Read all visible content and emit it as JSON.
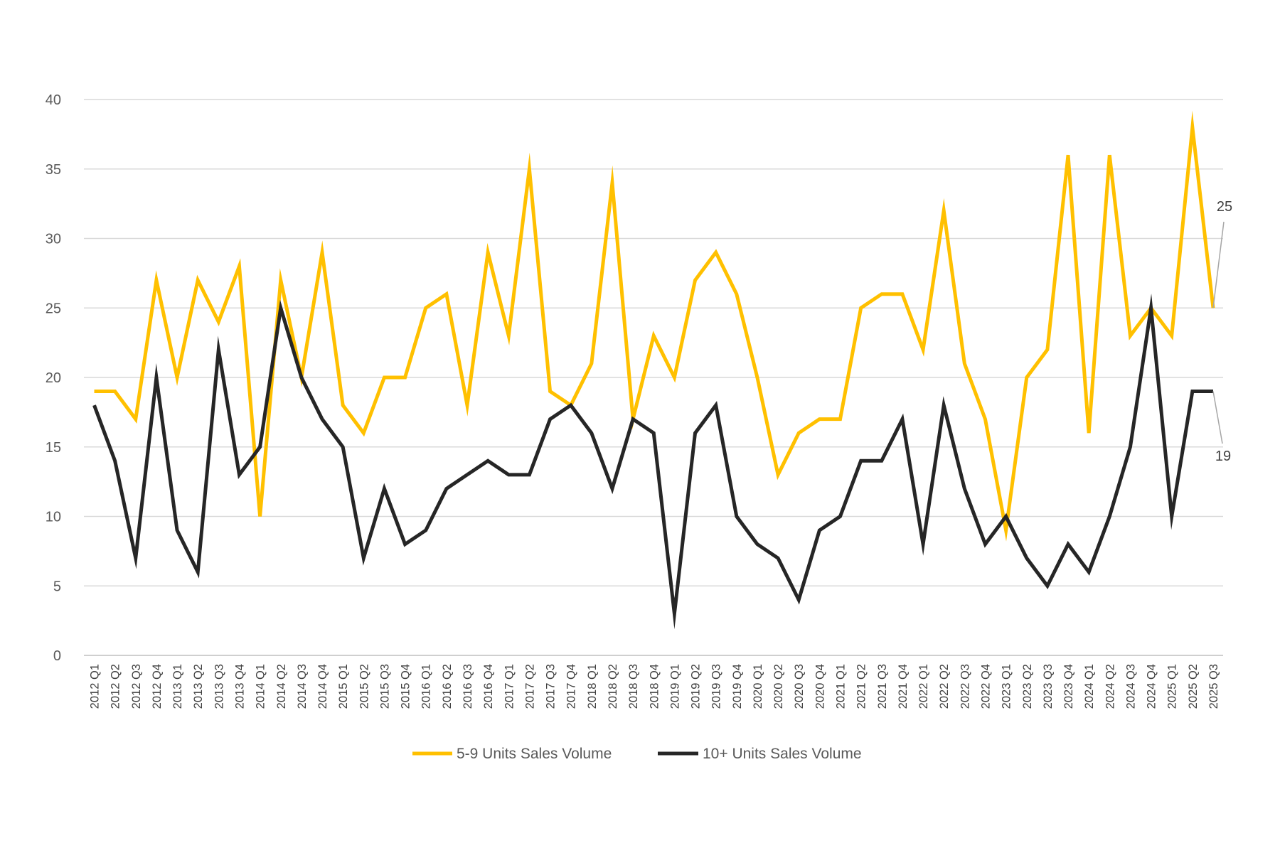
{
  "chart_data": {
    "type": "line",
    "title": "",
    "xlabel": "",
    "ylabel": "",
    "ylim": [
      0,
      40
    ],
    "yticks": [
      0,
      5,
      10,
      15,
      20,
      25,
      30,
      35,
      40
    ],
    "grid": "horizontal",
    "legend_position": "bottom",
    "categories": [
      "2012 Q1",
      "2012 Q2",
      "2012 Q3",
      "2012 Q4",
      "2013 Q1",
      "2013 Q2",
      "2013 Q3",
      "2013 Q4",
      "2014 Q1",
      "2014 Q2",
      "2014 Q3",
      "2014 Q4",
      "2015 Q1",
      "2015 Q2",
      "2015 Q3",
      "2015 Q4",
      "2016 Q1",
      "2016 Q2",
      "2016 Q3",
      "2016 Q4",
      "2017 Q1",
      "2017 Q2",
      "2017 Q3",
      "2017 Q4",
      "2018 Q1",
      "2018 Q2",
      "2018 Q3",
      "2018 Q4",
      "2019 Q1",
      "2019 Q2",
      "2019 Q3",
      "2019 Q4",
      "2020 Q1",
      "2020 Q2",
      "2020 Q3",
      "2020 Q4",
      "2021 Q1",
      "2021 Q2",
      "2021 Q3",
      "2021 Q4",
      "2022 Q1",
      "2022 Q2",
      "2022 Q3",
      "2022 Q4",
      "2023 Q1",
      "2023 Q2",
      "2023 Q3",
      "2023 Q4",
      "2024 Q1",
      "2024 Q2",
      "2024 Q3",
      "2024 Q4",
      "2025 Q1",
      "2025 Q2",
      "2025 Q3"
    ],
    "series": [
      {
        "name": "5-9 Units Sales Volume",
        "color": "#FFC000",
        "values": [
          19,
          19,
          17,
          27,
          20,
          27,
          24,
          28,
          10,
          27,
          20,
          29,
          18,
          16,
          20,
          20,
          25,
          26,
          18,
          29,
          23,
          35,
          19,
          18,
          21,
          34,
          17,
          23,
          20,
          27,
          29,
          26,
          20,
          13,
          16,
          17,
          17,
          25,
          26,
          26,
          22,
          32,
          21,
          17,
          9,
          20,
          22,
          36,
          16,
          36,
          23,
          25,
          23,
          38,
          25
        ],
        "end_label": "25"
      },
      {
        "name": "10+ Units Sales Volume",
        "color": "#262626",
        "values": [
          18,
          14,
          7,
          20,
          9,
          6,
          22,
          13,
          15,
          25,
          20,
          17,
          15,
          7,
          12,
          8,
          9,
          12,
          13,
          14,
          13,
          13,
          17,
          18,
          16,
          12,
          17,
          16,
          3,
          16,
          18,
          10,
          8,
          7,
          4,
          9,
          10,
          14,
          14,
          17,
          8,
          18,
          12,
          8,
          10,
          7,
          5,
          8,
          6,
          10,
          15,
          25,
          10,
          19,
          19
        ],
        "end_label": "19"
      }
    ]
  }
}
